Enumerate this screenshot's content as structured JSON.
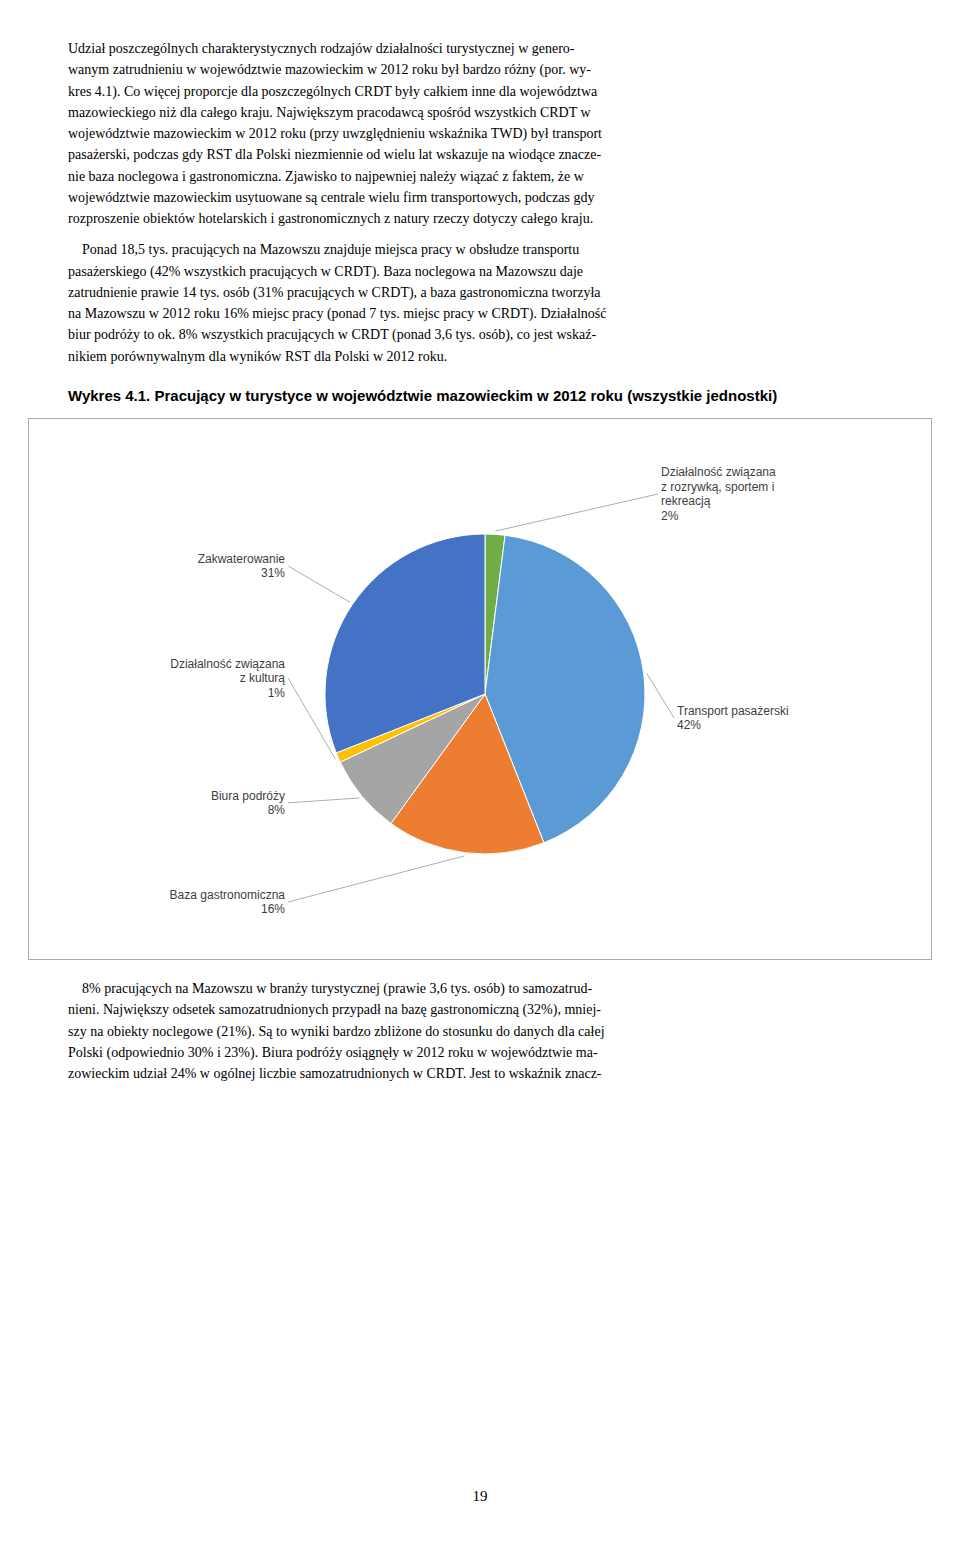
{
  "chart_data": {
    "type": "pie",
    "title": "Wykres 4.1. Pracujący w turystyce w województwie mazowieckim w 2012 roku (wszystkie jednostki)",
    "categories": [
      "Działalność związana\nz rozrywką, sportem i\nrekreacją",
      "Transport pasażerski",
      "Baza gastronomiczna",
      "Biura podróży",
      "Działalność związana\nz kulturą",
      "Zakwaterowanie"
    ],
    "values": [
      2,
      42,
      16,
      8,
      1,
      31
    ],
    "value_labels": [
      "2%",
      "42%",
      "16%",
      "8%",
      "1%",
      "31%"
    ],
    "colors": [
      "#70AD47",
      "#5B9BD5",
      "#ED7D31",
      "#A5A5A5",
      "#FFC000",
      "#4472C4"
    ],
    "data_labels": true
  },
  "text_above": [
    "Udział poszczególnych charakterystycznych rodzajów działalności turystycznej w genero-\nwanym zatrudnieniu w województwie mazowieckim w 2012 roku był bardzo różny (por. wy-\nkres 4.1). Co więcej proporcje dla poszczególnych CRDT były całkiem inne dla województwa\nmazowieckiego niż dla całego kraju. Największym pracodawcą spośród wszystkich CRDT w\nwojewództwie mazowieckim w 2012 roku (przy uwzględnieniu wskaźnika TWD) był transport\npasażerski, podczas gdy RST dla Polski niezmiennie od wielu lat wskazuje na wiodące znacze-\nnie baza noclegowa i gastronomiczna. Zjawisko to najpewniej należy wiązać z faktem, że w\nwojewództwie mazowieckim usytuowane są centrale wielu firm transportowych, podczas gdy\nrozproszenie obiektów hotelarskich i gastronomicznych z natury rzeczy dotyczy całego kraju.",
    "    Ponad 18,5 tys. pracujących na Mazowszu znajduje miejsca pracy w obsłudze transportu\npasażerskiego (42% wszystkich pracujących w CRDT). Baza noclegowa na Mazowszu daje\nzatrudnienie prawie 14 tys. osób (31% pracujących w CRDT), a baza gastronomiczna tworzyła\nna Mazowszu w 2012 roku 16% miejsc pracy (ponad 7 tys. miejsc pracy w CRDT). Działalność\nbiur podróży to ok. 8% wszystkich pracujących w CRDT (ponad 3,6 tys. osób), co jest wskaź-\nnikiem porównywalnym dla wyników RST dla Polski w 2012 roku."
  ],
  "text_below": "    8% pracujących na Mazowszu w branży turystycznej (prawie 3,6 tys. osób) to samozatrud-\nnieni. Największy odsetek samozatrudnionych przypadł na bazę gastronomiczną (32%), mniej-\nszy na obiekty noclegowe (21%). Są to wyniki bardzo zbliżone do stosunku do danych dla całej\nPolski (odpowiednio 30% i 23%). Biura podróży osiągnęły w 2012 roku w województwie ma-\nzowieckim udział 24% w ogólnej liczbie samozatrudnionych w CRDT. Jest to wskaźnik znacz-",
  "page_number": "19"
}
